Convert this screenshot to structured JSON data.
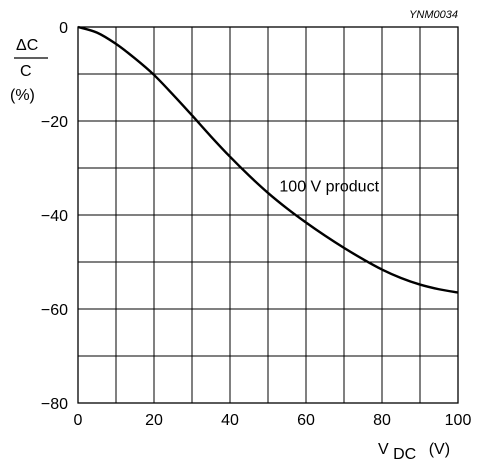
{
  "chart_data": {
    "type": "line",
    "title": "",
    "reference_code": "YNM0034",
    "ylabel": {
      "numerator": "ΔC",
      "denominator": "C",
      "unit": "(%)"
    },
    "xlabel": {
      "main": "V",
      "subscript": "DC",
      "unit": "(V)"
    },
    "xlim": [
      0,
      100
    ],
    "ylim": [
      -80,
      0
    ],
    "x_ticks": [
      0,
      20,
      40,
      60,
      80,
      100
    ],
    "y_ticks": [
      0,
      -20,
      -40,
      -60,
      -80
    ],
    "x_ticks_labels": [
      "0",
      "20",
      "40",
      "60",
      "80",
      "100"
    ],
    "y_ticks_labels": [
      "0",
      "−20",
      "−40",
      "−60",
      "−80"
    ],
    "grid": true,
    "grid_x_step": 10,
    "grid_y_step": 10,
    "series": [
      {
        "name": "100 V product",
        "x": [
          0,
          5,
          10,
          15,
          20,
          25,
          30,
          35,
          40,
          45,
          50,
          55,
          60,
          65,
          70,
          75,
          80,
          85,
          90,
          95,
          100
        ],
        "y": [
          0,
          -1.2,
          -3.6,
          -6.7,
          -10.2,
          -14.4,
          -18.8,
          -23.3,
          -27.6,
          -31.6,
          -35.3,
          -38.6,
          -41.6,
          -44.4,
          -47.0,
          -49.4,
          -51.6,
          -53.4,
          -54.8,
          -55.8,
          -56.5
        ]
      }
    ],
    "annotation": {
      "text": "100 V product",
      "at_x": 53,
      "at_y": -35
    }
  }
}
